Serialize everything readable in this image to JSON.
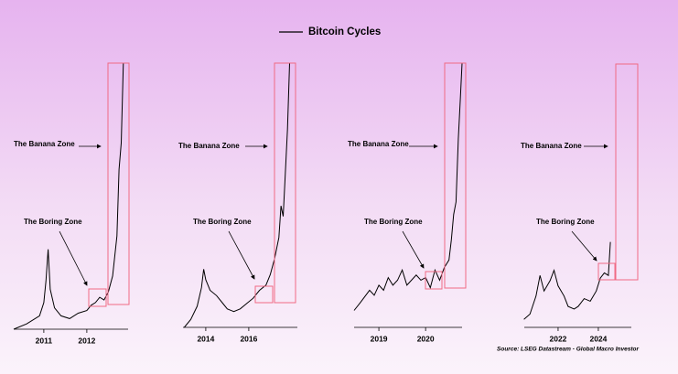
{
  "legend": "Bitcoin Cycles",
  "source": "Source: LSEG Datastream - Global Macro Investor",
  "chart_data": [
    {
      "type": "line",
      "color": "#000000",
      "annotations": [
        "The Banana Zone",
        "The Boring Zone"
      ],
      "xlim": [
        2010.3,
        2012.96
      ],
      "ylim": [
        0,
        100
      ],
      "xticks": [
        2011,
        2012
      ],
      "x": [
        2010.3,
        2010.6,
        2010.9,
        2011.0,
        2011.05,
        2011.1,
        2011.15,
        2011.25,
        2011.4,
        2011.6,
        2011.8,
        2012.0,
        2012.1,
        2012.2,
        2012.3,
        2012.4,
        2012.5,
        2012.6,
        2012.7,
        2012.75,
        2012.8,
        2012.85
      ],
      "values": [
        0,
        2,
        5,
        10,
        18,
        30,
        15,
        8,
        5,
        4,
        6,
        7,
        9,
        10,
        12,
        11,
        14,
        20,
        35,
        60,
        70,
        100
      ]
    },
    {
      "type": "line",
      "color": "#000000",
      "annotations": [
        "The Banana Zone",
        "The Boring Zone"
      ],
      "xlim": [
        2012.94,
        2018.26
      ],
      "ylim": [
        0,
        100
      ],
      "xticks": [
        2014,
        2016
      ],
      "x": [
        2013.0,
        2013.3,
        2013.6,
        2013.8,
        2013.9,
        2014.0,
        2014.2,
        2014.5,
        2014.8,
        2015.0,
        2015.3,
        2015.6,
        2015.9,
        2016.2,
        2016.5,
        2016.8,
        2017.0,
        2017.2,
        2017.4,
        2017.5,
        2017.6,
        2017.7,
        2017.8,
        2017.9
      ],
      "values": [
        0,
        3,
        8,
        15,
        22,
        18,
        14,
        12,
        9,
        7,
        6,
        7,
        9,
        11,
        14,
        16,
        20,
        26,
        34,
        46,
        42,
        58,
        75,
        100
      ]
    },
    {
      "type": "line",
      "color": "#000000",
      "annotations": [
        "The Banana Zone",
        "The Boring Zone"
      ],
      "xlim": [
        2018.47,
        2020.78
      ],
      "ylim": [
        0,
        100
      ],
      "xticks": [
        2019,
        2020
      ],
      "x": [
        2018.47,
        2018.6,
        2018.8,
        2018.9,
        2019.0,
        2019.1,
        2019.2,
        2019.3,
        2019.4,
        2019.5,
        2019.6,
        2019.8,
        2019.9,
        2020.0,
        2020.1,
        2020.2,
        2020.3,
        2020.4,
        2020.5,
        2020.55,
        2020.6,
        2020.65,
        2020.7,
        2020.74,
        2020.78
      ],
      "values": [
        2,
        5,
        10,
        8,
        12,
        10,
        15,
        12,
        14,
        18,
        12,
        16,
        14,
        15,
        11,
        18,
        14,
        19,
        22,
        30,
        40,
        45,
        70,
        85,
        100
      ]
    },
    {
      "type": "line",
      "color": "#000000",
      "annotations": [
        "The Banana Zone",
        "The Boring Zone"
      ],
      "xlim": [
        2020.32,
        2025.64
      ],
      "ylim": [
        0,
        100
      ],
      "xticks": [
        2022,
        2024
      ],
      "x": [
        2020.3,
        2020.6,
        2020.9,
        2021.1,
        2021.3,
        2021.6,
        2021.8,
        2022.0,
        2022.3,
        2022.5,
        2022.8,
        2023.0,
        2023.3,
        2023.6,
        2023.9,
        2024.1,
        2024.3,
        2024.5,
        2024.6
      ],
      "values": [
        1,
        3,
        10,
        18,
        12,
        16,
        20,
        14,
        10,
        6,
        5,
        6,
        9,
        8,
        12,
        17,
        19,
        18,
        31
      ]
    }
  ]
}
